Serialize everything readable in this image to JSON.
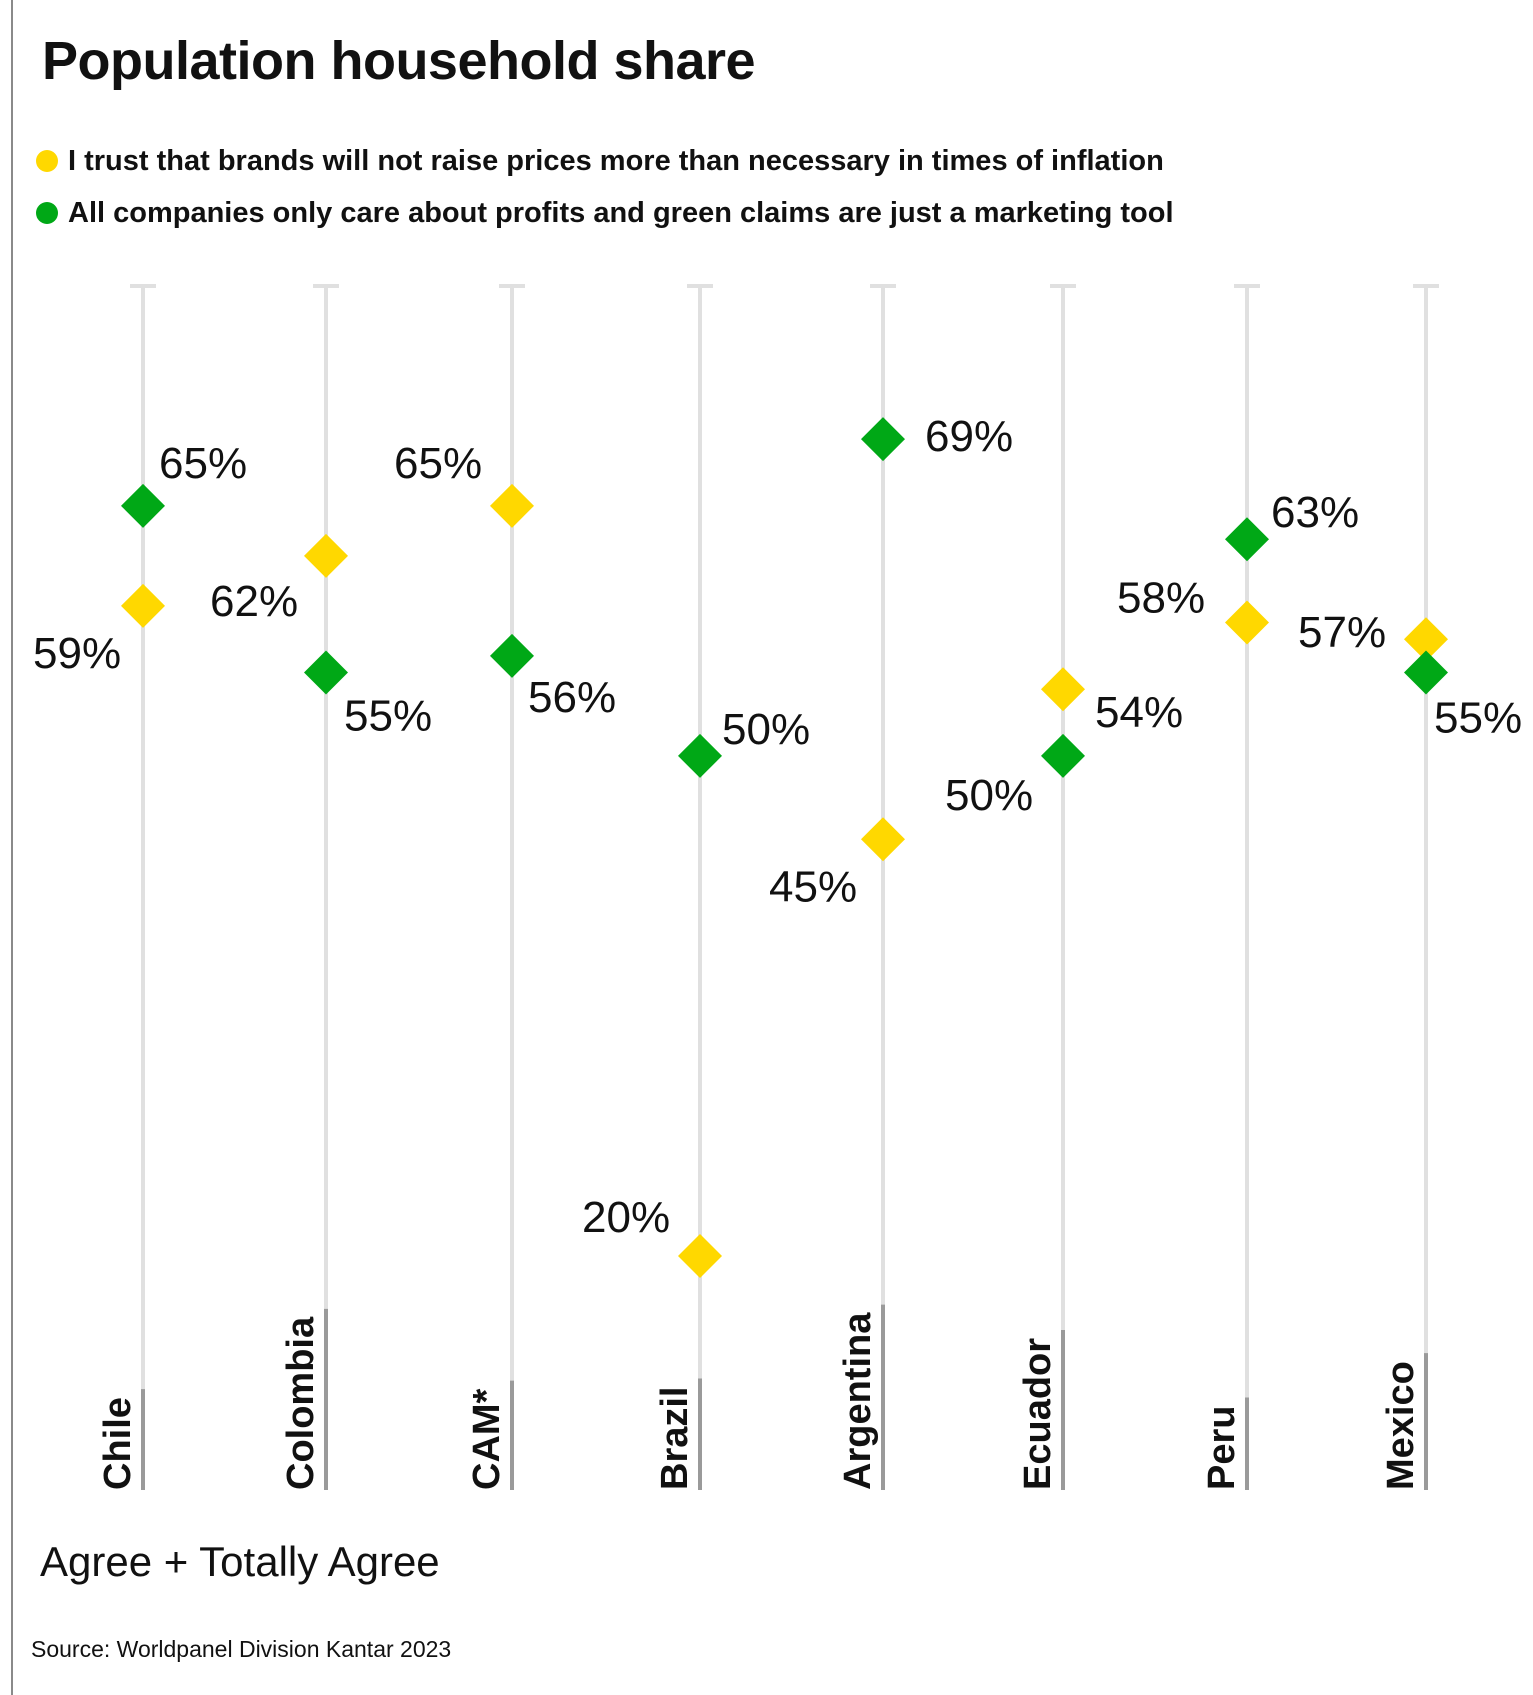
{
  "title": "Population household share",
  "subtitle": "Agree + Totally Agree",
  "source": "Source: Worldpanel Division Kantar 2023",
  "legend": [
    {
      "label": "I trust that brands will not raise prices more than necessary in times of inflation",
      "color": "#ffd800"
    },
    {
      "label": "All companies only care about profits and green claims are just a marketing tool",
      "color": "#00a816"
    }
  ],
  "chart_data": {
    "type": "scatter",
    "categories": [
      "Chile",
      "Colombia",
      "CAM*",
      "Brazil",
      "Argentina",
      "Ecuador",
      "Peru",
      "Mexico"
    ],
    "series": [
      {
        "name": "I trust that brands will not raise prices more than necessary in times of inflation",
        "color": "#ffd800",
        "values": [
          59,
          62,
          65,
          20,
          45,
          54,
          58,
          57
        ],
        "labels": [
          "59%",
          "62%",
          "65%",
          "20%",
          "45%",
          "54%",
          "58%",
          "57%"
        ]
      },
      {
        "name": "All companies only care about profits and green claims are just a marketing tool",
        "color": "#00a816",
        "values": [
          65,
          55,
          56,
          50,
          69,
          50,
          63,
          55
        ],
        "labels": [
          "65%",
          "55%",
          "56%",
          "50%",
          "69%",
          "50%",
          "63%",
          "55%"
        ]
      }
    ],
    "marker": "diamond",
    "grid": false,
    "legend_position": "top-left"
  }
}
